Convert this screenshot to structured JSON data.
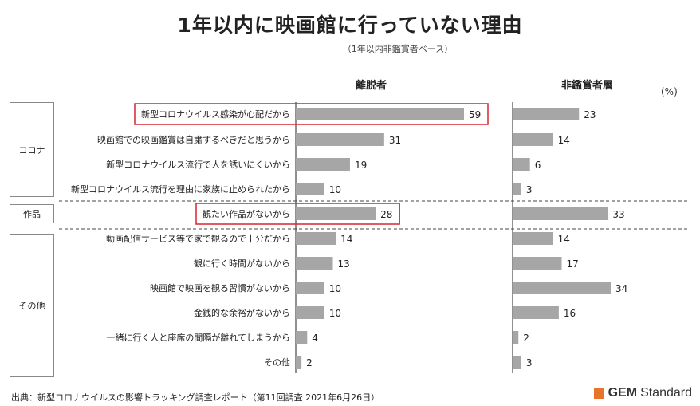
{
  "title": "1年以内に映画館に行っていない理由",
  "subtitle": "（1年以内非鑑賞者ベース）",
  "unit": "(%)",
  "source": "出典：新型コロナウイルスの影響トラッキング調査レポート（第11回調査 2021年6月26日）",
  "logo": {
    "brand": "GEM",
    "suffix": "Standard"
  },
  "colors": {
    "bar": "#a6a6a6",
    "highlight": "#d9232e",
    "logo": "#e8732a"
  },
  "chart_data": {
    "type": "bar",
    "orientation": "horizontal",
    "categories": [
      "新型コロナウイルス感染が心配だから",
      "映画館での映画鑑賞は自粛するべきだと思うから",
      "新型コロナウイルス流行で人を誘いにくいから",
      "新型コロナウイルス流行を理由に家族に止められたから",
      "観たい作品がないから",
      "動画配信サービス等で家で観るので十分だから",
      "観に行く時間がないから",
      "映画館で映画を観る習慣がないから",
      "金銭的な余裕がないから",
      "一緒に行く人と座席の間隔が離れてしまうから",
      "その他"
    ],
    "groups": [
      {
        "label": "コロナ",
        "count": 4
      },
      {
        "label": "作品",
        "count": 1
      },
      {
        "label": "その他",
        "count": 6
      }
    ],
    "series": [
      {
        "name": "離脱者",
        "values": [
          59,
          31,
          19,
          10,
          28,
          14,
          13,
          10,
          10,
          4,
          2
        ]
      },
      {
        "name": "非鑑賞者層",
        "values": [
          23,
          14,
          6,
          3,
          33,
          14,
          17,
          34,
          16,
          2,
          3
        ]
      }
    ],
    "highlighted": [
      0,
      4
    ]
  }
}
